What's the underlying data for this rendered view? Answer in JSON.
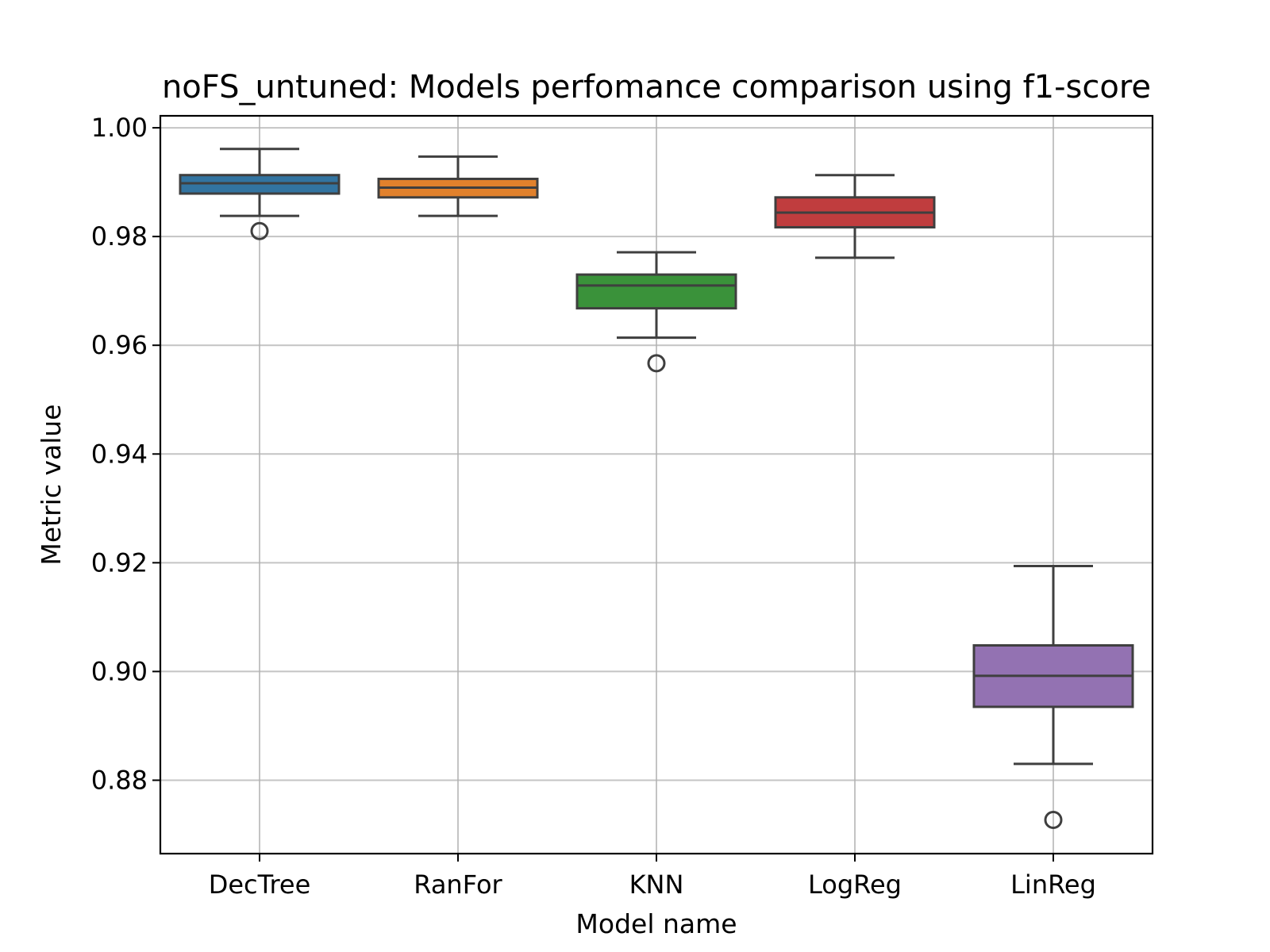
{
  "chart_data": {
    "type": "box",
    "title": "noFS_untuned: Models perfomance comparison using f1-score",
    "xlabel": "Model name",
    "ylabel": "Metric value",
    "ylim": [
      0.8665,
      1.0022
    ],
    "yticks": [
      0.88,
      0.9,
      0.92,
      0.94,
      0.96,
      0.98,
      1.0
    ],
    "ytick_labels": [
      "0.88",
      "0.90",
      "0.92",
      "0.94",
      "0.96",
      "0.98",
      "1.00"
    ],
    "grid": true,
    "categories": [
      "DecTree",
      "RanFor",
      "KNN",
      "LogReg",
      "LinReg"
    ],
    "series": [
      {
        "category": "DecTree",
        "color": "#3274a1",
        "whisker_low": 0.9838,
        "q1": 0.9879,
        "median": 0.9898,
        "q3": 0.9913,
        "whisker_high": 0.9961,
        "outliers": [
          0.981
        ]
      },
      {
        "category": "RanFor",
        "color": "#e1812c",
        "whisker_low": 0.9838,
        "q1": 0.9872,
        "median": 0.989,
        "q3": 0.9906,
        "whisker_high": 0.9947,
        "outliers": []
      },
      {
        "category": "KNN",
        "color": "#3a923a",
        "whisker_low": 0.9614,
        "q1": 0.9668,
        "median": 0.971,
        "q3": 0.973,
        "whisker_high": 0.9771,
        "outliers": [
          0.9567
        ]
      },
      {
        "category": "LogReg",
        "color": "#c03d3e",
        "whisker_low": 0.9761,
        "q1": 0.9817,
        "median": 0.9844,
        "q3": 0.9872,
        "whisker_high": 0.9913,
        "outliers": []
      },
      {
        "category": "LinReg",
        "color": "#9372b2",
        "whisker_low": 0.883,
        "q1": 0.8935,
        "median": 0.8992,
        "q3": 0.9048,
        "whisker_high": 0.9194,
        "outliers": [
          0.8727
        ]
      }
    ]
  }
}
